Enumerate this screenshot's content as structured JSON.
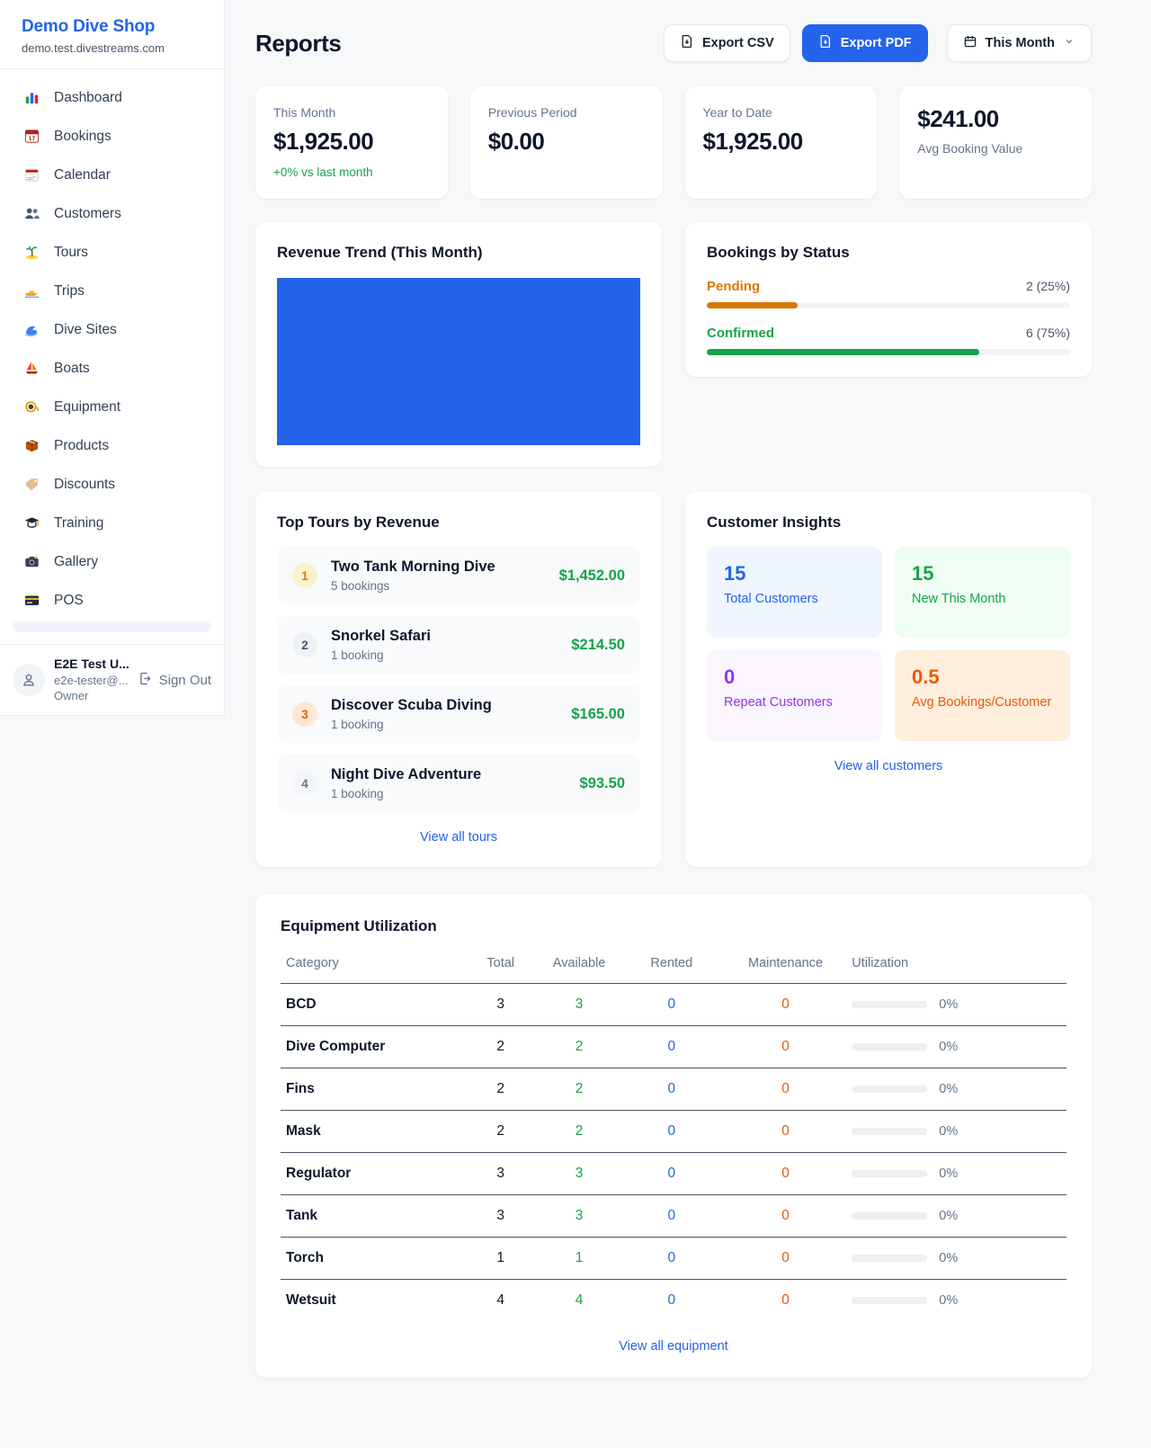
{
  "colors": {
    "accent_blue": "#2563eb",
    "success_green": "#16a34a",
    "pending_orange": "#d97706",
    "maintenance_orange": "#ea580c",
    "repeat_purple": "#9333ea"
  },
  "brand": {
    "name": "Demo Dive Shop",
    "domain": "demo.test.divestreams.com"
  },
  "sidebar": {
    "items": [
      {
        "label": "Dashboard",
        "icon": "bar-chart-icon"
      },
      {
        "label": "Bookings",
        "icon": "calendar-date-icon"
      },
      {
        "label": "Calendar",
        "icon": "spiral-calendar-icon"
      },
      {
        "label": "Customers",
        "icon": "users-icon"
      },
      {
        "label": "Tours",
        "icon": "island-icon"
      },
      {
        "label": "Trips",
        "icon": "speedboat-icon"
      },
      {
        "label": "Dive Sites",
        "icon": "wave-icon"
      },
      {
        "label": "Boats",
        "icon": "sailboat-icon"
      },
      {
        "label": "Equipment",
        "icon": "diving-mask-icon"
      },
      {
        "label": "Products",
        "icon": "package-icon"
      },
      {
        "label": "Discounts",
        "icon": "tag-icon"
      },
      {
        "label": "Training",
        "icon": "graduation-cap-icon"
      },
      {
        "label": "Gallery",
        "icon": "camera-icon"
      },
      {
        "label": "POS",
        "icon": "credit-card-icon"
      }
    ],
    "user": {
      "name": "E2E Test U...",
      "email": "e2e-tester@...",
      "role": "Owner",
      "signout_label": "Sign Out"
    }
  },
  "header": {
    "title": "Reports",
    "export_csv_label": "Export CSV",
    "export_pdf_label": "Export PDF",
    "period_label": "This Month"
  },
  "stats": [
    {
      "label": "This Month",
      "value": "$1,925.00",
      "delta": "+0% vs last month"
    },
    {
      "label": "Previous Period",
      "value": "$0.00"
    },
    {
      "label": "Year to Date",
      "value": "$1,925.00"
    },
    {
      "label": "Avg Booking Value",
      "value": "$241.00",
      "value_first": true
    }
  ],
  "revenue_trend": {
    "title": "Revenue Trend (This Month)",
    "bar_color": "#2563eb"
  },
  "bookings_by_status": {
    "title": "Bookings by Status",
    "rows": [
      {
        "label": "Pending",
        "count": 2,
        "percent": 25,
        "display": "2 (25%)",
        "color": "#d97706"
      },
      {
        "label": "Confirmed",
        "count": 6,
        "percent": 75,
        "display": "6 (75%)",
        "color": "#16a34a"
      }
    ]
  },
  "top_tours": {
    "title": "Top Tours by Revenue",
    "link_label": "View all tours",
    "items": [
      {
        "rank": 1,
        "name": "Two Tank Morning Dive",
        "bookings": "5 bookings",
        "revenue": "$1,452.00"
      },
      {
        "rank": 2,
        "name": "Snorkel Safari",
        "bookings": "1 booking",
        "revenue": "$214.50"
      },
      {
        "rank": 3,
        "name": "Discover Scuba Diving",
        "bookings": "1 booking",
        "revenue": "$165.00"
      },
      {
        "rank": 4,
        "name": "Night Dive Adventure",
        "bookings": "1 booking",
        "revenue": "$93.50"
      }
    ]
  },
  "customer_insights": {
    "title": "Customer Insights",
    "link_label": "View all customers",
    "cards": [
      {
        "value": "15",
        "label": "Total Customers",
        "bg": "#eff6ff",
        "color": "#2563eb"
      },
      {
        "value": "15",
        "label": "New This Month",
        "bg": "#f0fdf4",
        "color": "#16a34a"
      },
      {
        "value": "0",
        "label": "Repeat Customers",
        "bg": "#faf5ff",
        "color": "#9333ea"
      },
      {
        "value": "0.5",
        "label": "Avg Bookings/Customer",
        "bg": "#ffeedb",
        "color": "#ea580c"
      }
    ]
  },
  "equipment": {
    "title": "Equipment Utilization",
    "link_label": "View all equipment",
    "columns": [
      "Category",
      "Total",
      "Available",
      "Rented",
      "Maintenance",
      "Utilization"
    ],
    "rows": [
      {
        "category": "BCD",
        "total": 3,
        "available": 3,
        "rented": 0,
        "maintenance": 0,
        "utilization": "0%"
      },
      {
        "category": "Dive Computer",
        "total": 2,
        "available": 2,
        "rented": 0,
        "maintenance": 0,
        "utilization": "0%"
      },
      {
        "category": "Fins",
        "total": 2,
        "available": 2,
        "rented": 0,
        "maintenance": 0,
        "utilization": "0%"
      },
      {
        "category": "Mask",
        "total": 2,
        "available": 2,
        "rented": 0,
        "maintenance": 0,
        "utilization": "0%"
      },
      {
        "category": "Regulator",
        "total": 3,
        "available": 3,
        "rented": 0,
        "maintenance": 0,
        "utilization": "0%"
      },
      {
        "category": "Tank",
        "total": 3,
        "available": 3,
        "rented": 0,
        "maintenance": 0,
        "utilization": "0%"
      },
      {
        "category": "Torch",
        "total": 1,
        "available": 1,
        "rented": 0,
        "maintenance": 0,
        "utilization": "0%"
      },
      {
        "category": "Wetsuit",
        "total": 4,
        "available": 4,
        "rented": 0,
        "maintenance": 0,
        "utilization": "0%"
      }
    ]
  }
}
